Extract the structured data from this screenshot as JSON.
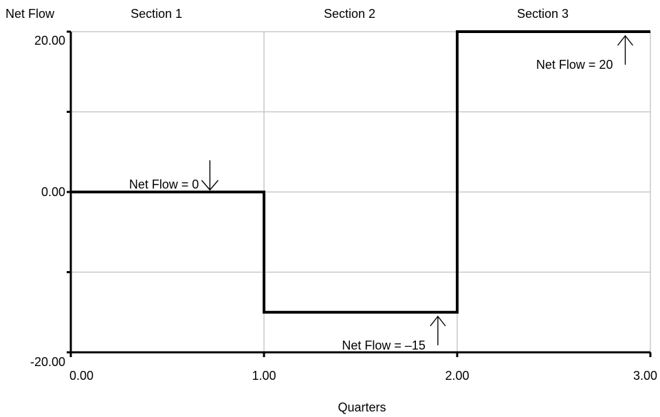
{
  "chart_data": {
    "type": "line",
    "step": true,
    "xlabel": "Quarters",
    "ylabel": "Net Flow",
    "xlim": [
      0,
      3
    ],
    "ylim": [
      -20,
      20
    ],
    "x_ticks": [
      "0.00",
      "1.00",
      "2.00",
      "3.00"
    ],
    "x_tick_values": [
      0,
      1,
      2,
      3
    ],
    "y_ticks": [
      "20.00",
      "0.00",
      "-20.00"
    ],
    "y_tick_values": [
      20,
      0,
      -20
    ],
    "y_minor_tick_values": [
      10,
      -10
    ],
    "grid": true,
    "series": [
      {
        "x": [
          0,
          1,
          1,
          2,
          2,
          3
        ],
        "y": [
          0,
          0,
          -15,
          -15,
          20,
          20
        ]
      }
    ],
    "sections": [
      {
        "label": "Section 1",
        "x_start": 0,
        "x_end": 1
      },
      {
        "label": "Section 2",
        "x_start": 1,
        "x_end": 2
      },
      {
        "label": "Section 3",
        "x_start": 2,
        "x_end": 3
      }
    ],
    "annotations": [
      {
        "text": "Net Flow = 0",
        "x": 0.72,
        "y": 0,
        "arrow": "down"
      },
      {
        "text": "Net Flow = –15",
        "x": 1.9,
        "y": -15,
        "arrow": "up"
      },
      {
        "text": "Net Flow = 20",
        "x": 2.87,
        "y": 20,
        "arrow": "up"
      }
    ]
  }
}
